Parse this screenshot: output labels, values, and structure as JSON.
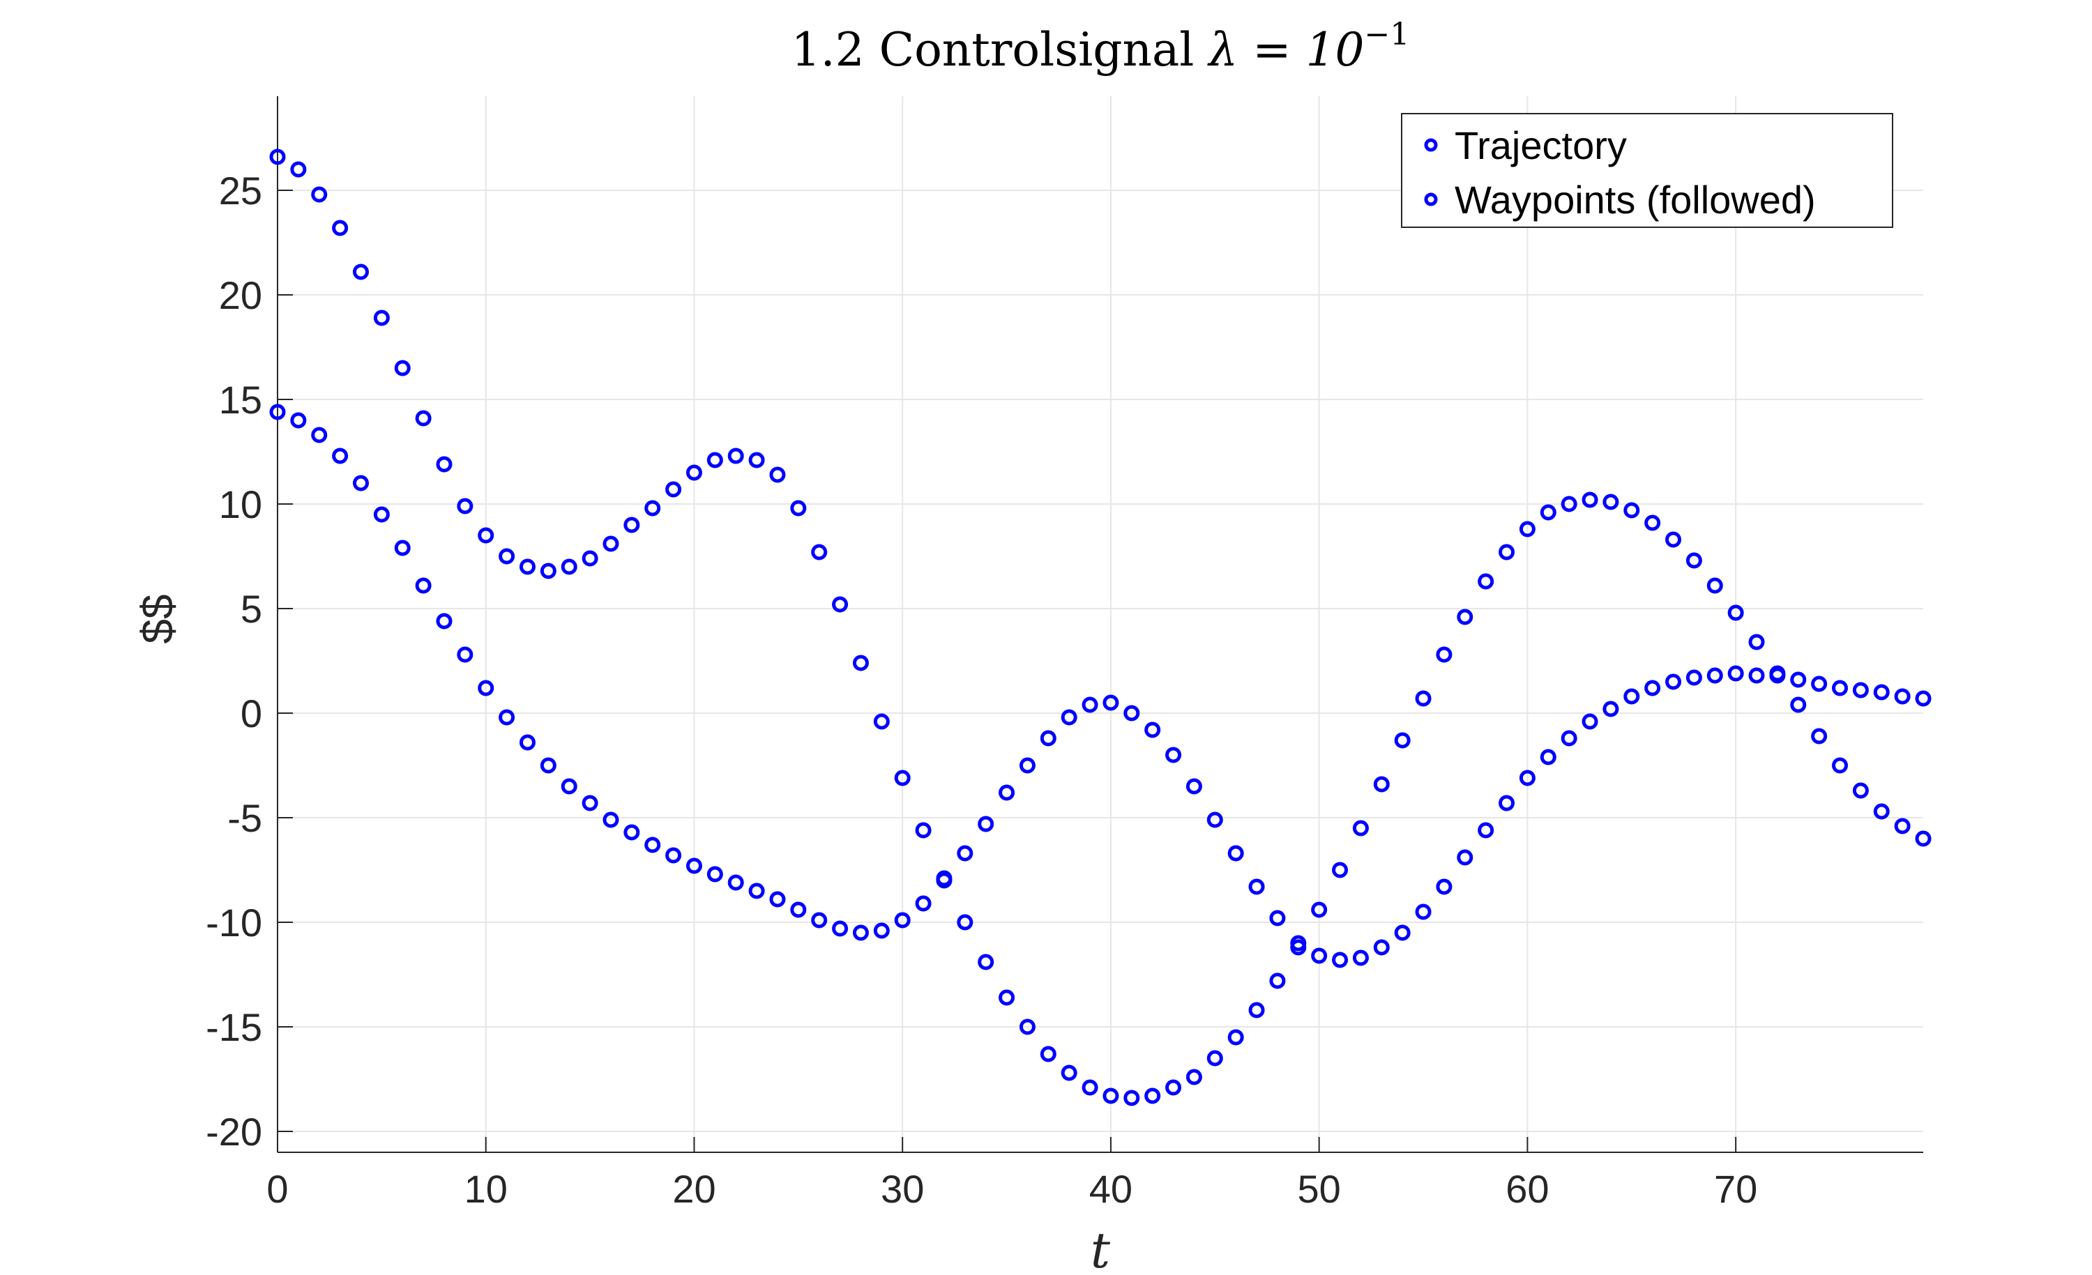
{
  "chart_data": {
    "type": "scatter",
    "title_main": "1.2 Controlsignal ",
    "title_symbol": "λ = 10",
    "title_sup": "−1",
    "xlabel": "t",
    "ylabel": "$$",
    "xlim": [
      0,
      79
    ],
    "ylim": [
      -21,
      29.5
    ],
    "xticks": [
      0,
      10,
      20,
      30,
      40,
      50,
      60,
      70
    ],
    "yticks": [
      -20,
      -15,
      -10,
      -5,
      0,
      5,
      10,
      15,
      20,
      25
    ],
    "grid": true,
    "legend_position": "top-right",
    "marker_color": "#0000ff",
    "series": [
      {
        "name": "Trajectory",
        "x": [
          0,
          1,
          2,
          3,
          4,
          5,
          6,
          7,
          8,
          9,
          10,
          11,
          12,
          13,
          14,
          15,
          16,
          17,
          18,
          19,
          20,
          21,
          22,
          23,
          24,
          25,
          26,
          27,
          28,
          29,
          30,
          31,
          32,
          33,
          34,
          35,
          36,
          37,
          38,
          39,
          40,
          41,
          42,
          43,
          44,
          45,
          46,
          47,
          48,
          49,
          50,
          51,
          52,
          53,
          54,
          55,
          56,
          57,
          58,
          59,
          60,
          61,
          62,
          63,
          64,
          65,
          66,
          67,
          68,
          69,
          70,
          71,
          72,
          73,
          74,
          75,
          76,
          77,
          78,
          79
        ],
        "values": [
          26.6,
          26.0,
          24.8,
          23.2,
          21.1,
          18.9,
          16.5,
          14.1,
          11.9,
          9.9,
          8.5,
          7.5,
          7.0,
          6.8,
          7.0,
          7.4,
          8.1,
          9.0,
          9.8,
          10.7,
          11.5,
          12.1,
          12.3,
          12.1,
          11.4,
          9.8,
          7.7,
          5.2,
          2.4,
          -0.4,
          -3.1,
          -5.6,
          -7.9,
          -10.0,
          -11.9,
          -13.6,
          -15.0,
          -16.3,
          -17.2,
          -17.9,
          -18.3,
          -18.4,
          -18.3,
          -17.9,
          -17.4,
          -16.5,
          -15.5,
          -14.2,
          -12.8,
          -11.2,
          -9.4,
          -7.5,
          -5.5,
          -3.4,
          -1.3,
          0.7,
          2.8,
          4.6,
          6.3,
          7.7,
          8.8,
          9.6,
          10.0,
          10.2,
          10.1,
          9.7,
          9.1,
          8.3,
          7.3,
          6.1,
          4.8,
          3.4,
          1.9,
          0.4,
          -1.1,
          -2.5,
          -3.7,
          -4.7,
          -5.4,
          -6.0
        ]
      },
      {
        "name": "Waypoints (followed)",
        "x": [
          0,
          1,
          2,
          3,
          4,
          5,
          6,
          7,
          8,
          9,
          10,
          11,
          12,
          13,
          14,
          15,
          16,
          17,
          18,
          19,
          20,
          21,
          22,
          23,
          24,
          25,
          26,
          27,
          28,
          29,
          30,
          31,
          32,
          33,
          34,
          35,
          36,
          37,
          38,
          39,
          40,
          41,
          42,
          43,
          44,
          45,
          46,
          47,
          48,
          49,
          50,
          51,
          52,
          53,
          54,
          55,
          56,
          57,
          58,
          59,
          60,
          61,
          62,
          63,
          64,
          65,
          66,
          67,
          68,
          69,
          70,
          71,
          72,
          73,
          74,
          75,
          76,
          77,
          78,
          79
        ],
        "values": [
          14.4,
          14.0,
          13.3,
          12.3,
          11.0,
          9.5,
          7.9,
          6.1,
          4.4,
          2.8,
          1.2,
          -0.2,
          -1.4,
          -2.5,
          -3.5,
          -4.3,
          -5.1,
          -5.7,
          -6.3,
          -6.8,
          -7.3,
          -7.7,
          -8.1,
          -8.5,
          -8.9,
          -9.4,
          -9.9,
          -10.3,
          -10.5,
          -10.4,
          -9.9,
          -9.1,
          -8.0,
          -6.7,
          -5.3,
          -3.8,
          -2.5,
          -1.2,
          -0.2,
          0.4,
          0.5,
          0.0,
          -0.8,
          -2.0,
          -3.5,
          -5.1,
          -6.7,
          -8.3,
          -9.8,
          -11.0,
          -11.6,
          -11.8,
          -11.7,
          -11.2,
          -10.5,
          -9.5,
          -8.3,
          -6.9,
          -5.6,
          -4.3,
          -3.1,
          -2.1,
          -1.2,
          -0.4,
          0.2,
          0.8,
          1.2,
          1.5,
          1.7,
          1.8,
          1.9,
          1.8,
          1.8,
          1.6,
          1.4,
          1.2,
          1.1,
          1.0,
          0.8,
          0.7
        ]
      }
    ]
  }
}
